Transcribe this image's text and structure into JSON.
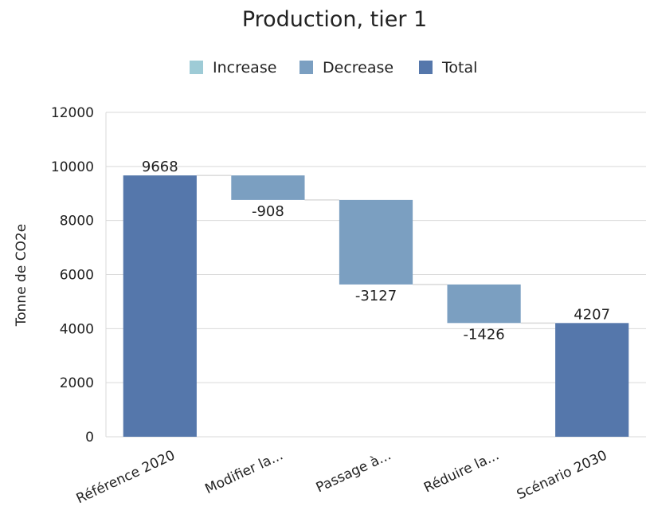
{
  "chart_data": {
    "type": "waterfall",
    "title": "Production, tier 1",
    "ylabel": "Tonne de CO2e",
    "ylim": [
      0,
      12000
    ],
    "yticks": [
      0,
      2000,
      4000,
      6000,
      8000,
      10000,
      12000
    ],
    "grid": true,
    "legend_position": "top",
    "legend": [
      {
        "name": "Increase",
        "color": "#9ecbd6"
      },
      {
        "name": "Decrease",
        "color": "#7b9fc1"
      },
      {
        "name": "Total",
        "color": "#5577ab"
      }
    ],
    "categories": [
      "Référence 2020",
      "Modifier la...",
      "Passage à...",
      "Réduire la...",
      "Scénario 2030"
    ],
    "values": [
      9668,
      -908,
      -3127,
      -1426,
      4207
    ],
    "labels": [
      "9668",
      "-908",
      "-3127",
      "-1426",
      "4207"
    ],
    "kinds": [
      "total",
      "decrease",
      "decrease",
      "decrease",
      "total"
    ]
  }
}
